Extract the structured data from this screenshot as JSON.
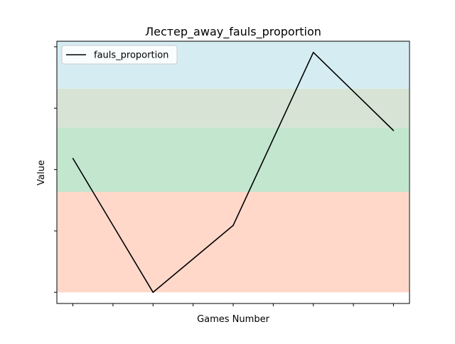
{
  "chart_data": {
    "type": "line",
    "title": "Лестер_away_fauls_proportion",
    "xlabel": "Games Number",
    "ylabel": "Value",
    "legend": {
      "placement": "top-left",
      "entries": [
        "fauls_proportion"
      ]
    },
    "x": [
      1,
      2,
      3,
      4,
      5
    ],
    "xlim": [
      0.8,
      5.2
    ],
    "x_ticks": [
      1,
      1.5,
      2,
      2.5,
      3,
      3.5,
      4,
      4.5,
      5
    ],
    "series": [
      {
        "name": "fauls_proportion",
        "color": "#000000",
        "values": [
          0.54,
          0.3,
          0.42,
          0.73,
          0.59
        ]
      }
    ],
    "ylim": [
      0.28,
      0.75
    ],
    "y_ticks": [
      0.3,
      0.41,
      0.52,
      0.63,
      0.74
    ],
    "y_tick_labels_shown": false,
    "grid": false,
    "bands": [
      {
        "from": 0.3,
        "to": 0.48,
        "color": "#ffc8b4",
        "opacity": 0.7
      },
      {
        "from": 0.48,
        "to": 0.595,
        "color": "#a9dbba",
        "opacity": 0.7
      },
      {
        "from": 0.595,
        "to": 0.665,
        "color": "#c6d8c3",
        "opacity": 0.7
      },
      {
        "from": 0.665,
        "to": 0.78,
        "color": "#c3e6ed",
        "opacity": 0.7
      }
    ]
  }
}
